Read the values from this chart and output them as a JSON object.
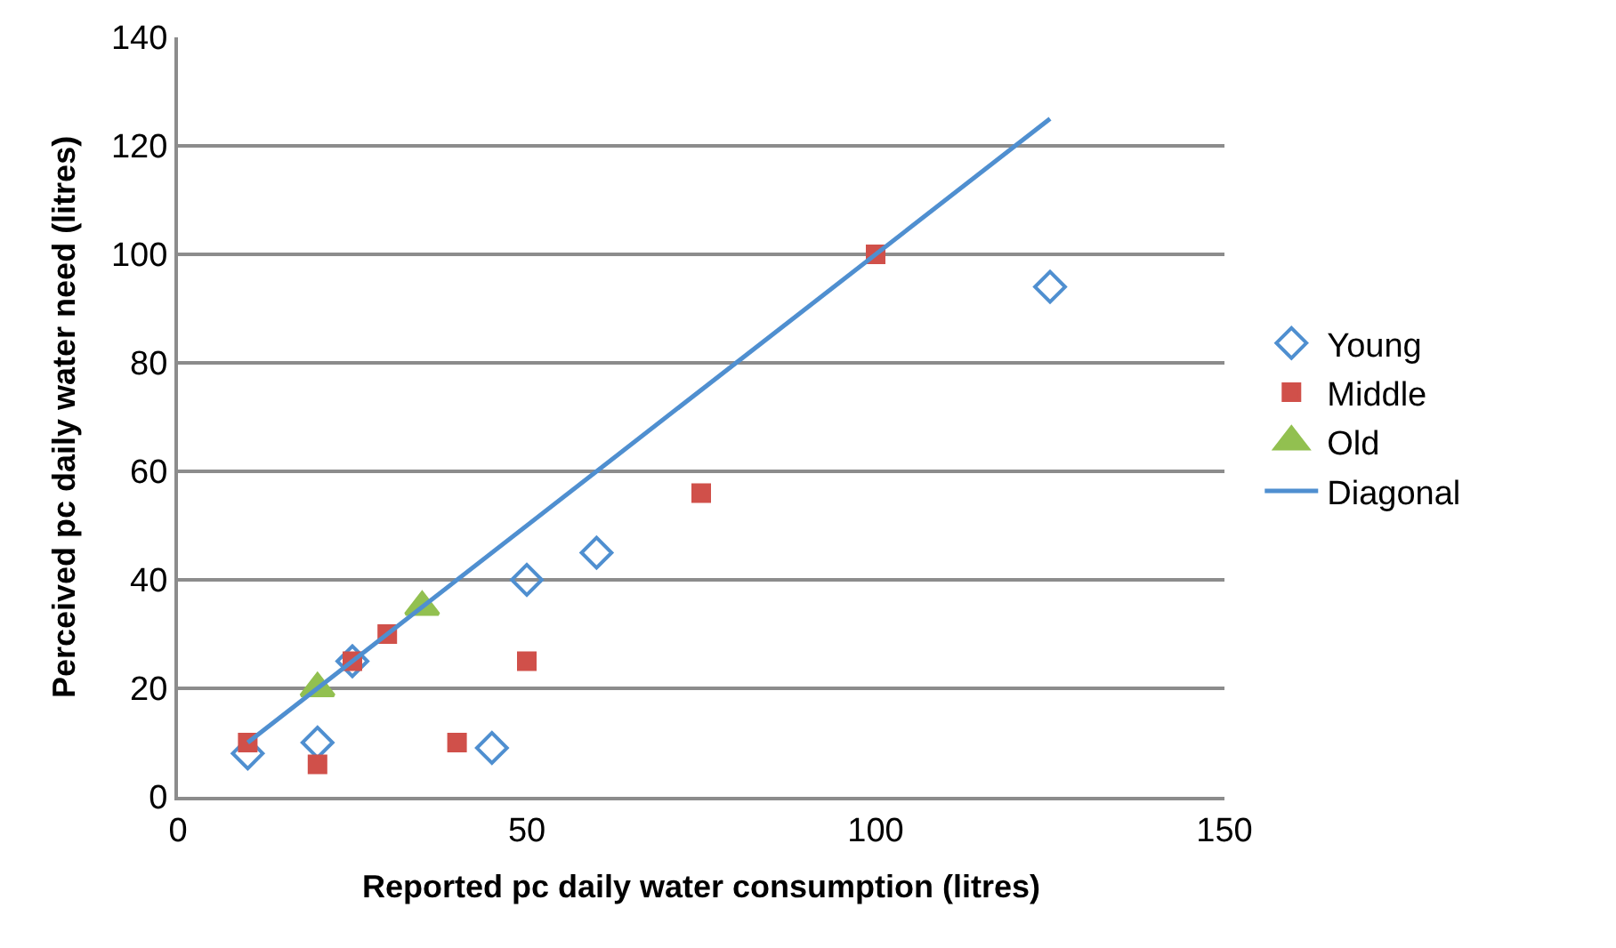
{
  "chart_data": {
    "type": "scatter",
    "xlabel": "Reported pc daily water consumption (litres)",
    "ylabel": "Perceived pc daily water need (litres)",
    "xlim": [
      0,
      150
    ],
    "xticks": [
      0,
      50,
      100,
      150
    ],
    "ylim": [
      0,
      140
    ],
    "yticks": [
      0,
      20,
      40,
      60,
      80,
      100,
      120,
      140
    ],
    "grid": "y",
    "legend": "right",
    "series": [
      {
        "name": "Young",
        "marker": "diamond",
        "color": "#4f8fd0",
        "x": [
          10,
          20,
          25,
          45,
          50,
          60,
          125
        ],
        "values": [
          8,
          10,
          25,
          9,
          40,
          45,
          94
        ]
      },
      {
        "name": "Middle",
        "marker": "square",
        "color": "#d0504a",
        "x": [
          10,
          20,
          25,
          30,
          40,
          50,
          75,
          100
        ],
        "values": [
          10,
          6,
          25,
          30,
          10,
          25,
          56,
          100
        ]
      },
      {
        "name": "Old",
        "marker": "triangle",
        "color": "#92c050",
        "x": [
          20,
          35
        ],
        "values": [
          20,
          35
        ]
      },
      {
        "name": "Diagonal",
        "type": "line",
        "marker": "none",
        "color": "#4f8fd0",
        "x": [
          10,
          125
        ],
        "values": [
          10,
          125
        ]
      }
    ]
  }
}
